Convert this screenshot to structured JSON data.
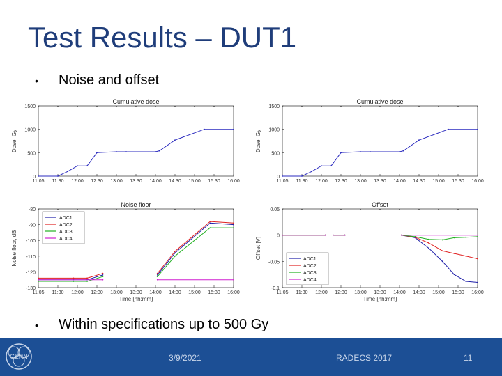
{
  "slide": {
    "title": "Test Results – DUT1",
    "bullets": [
      {
        "text": "Noise and offset"
      },
      {
        "text": "Within specifications up to 500 Gy"
      }
    ]
  },
  "footer": {
    "date": "3/9/2021",
    "conference": "RADECS 2017",
    "page": "11",
    "logo_text": "CERN",
    "bg_color": "#1c4f95"
  },
  "chart_data": [
    {
      "type": "line",
      "title": "Cumulative dose",
      "xlabel": "",
      "ylabel": "Dose, Gy",
      "xticks": [
        "11:05",
        "11:30",
        "12:00",
        "12:30",
        "13:00",
        "13:30",
        "14:00",
        "14:30",
        "15:00",
        "15:30",
        "16:00"
      ],
      "xlim": [
        0,
        10
      ],
      "ylim": [
        0,
        1500
      ],
      "yticks": [
        0,
        500,
        1000,
        1500
      ],
      "yticklabels": [
        "0",
        "500",
        "1000",
        "1500"
      ],
      "series": [
        {
          "name": "",
          "color": "#2b2bbf",
          "x": [
            0,
            1,
            1.5,
            2,
            2.5,
            3,
            4,
            4.5,
            6,
            6.2,
            7,
            8.5,
            10
          ],
          "y": [
            0,
            0,
            100,
            220,
            220,
            500,
            520,
            520,
            520,
            540,
            770,
            1000,
            1000
          ]
        }
      ]
    },
    {
      "type": "line",
      "title": "Cumulative dose",
      "xlabel": "",
      "ylabel": "Dose, Gy",
      "xticks": [
        "11:05",
        "11:30",
        "12:00",
        "12:30",
        "13:00",
        "13:30",
        "14:00",
        "14:30",
        "15:00",
        "15:30",
        "16:00"
      ],
      "xlim": [
        0,
        10
      ],
      "ylim": [
        0,
        1500
      ],
      "yticks": [
        0,
        500,
        1000,
        1500
      ],
      "yticklabels": [
        "0",
        "500",
        "1000",
        "1500"
      ],
      "series": [
        {
          "name": "",
          "color": "#2b2bbf",
          "x": [
            0,
            1,
            1.5,
            2,
            2.5,
            3,
            4,
            4.5,
            6,
            6.2,
            7,
            8.5,
            10
          ],
          "y": [
            0,
            0,
            100,
            220,
            220,
            500,
            520,
            520,
            520,
            540,
            770,
            1000,
            1000
          ]
        }
      ]
    },
    {
      "type": "line",
      "title": "Noise floor",
      "xlabel": "Time [hh:mm]",
      "ylabel": "Noise floor, dB",
      "xticks": [
        "11:05",
        "11:30",
        "12:00",
        "12:30",
        "13:00",
        "13:30",
        "14:00",
        "14:30",
        "15:00",
        "15:30",
        "16:00"
      ],
      "xlim": [
        0,
        10
      ],
      "ylim": [
        -130,
        -80
      ],
      "yticks": [
        -130,
        -120,
        -110,
        -100,
        -90,
        -80
      ],
      "yticklabels": [
        "-130",
        "-120",
        "-110",
        "-100",
        "-90",
        "-80"
      ],
      "legend": "top-left",
      "series": [
        {
          "name": "ADC1",
          "color": "#1f1fa8",
          "segments": [
            {
              "x": [
                0,
                1.8,
                2.5,
                3.3
              ],
              "y": [
                -125,
                -125,
                -125,
                -122
              ]
            },
            {
              "x": [
                6.1,
                7,
                8.8,
                10
              ],
              "y": [
                -122,
                -108,
                -89,
                -90
              ]
            }
          ]
        },
        {
          "name": "ADC2",
          "color": "#e02020",
          "segments": [
            {
              "x": [
                0,
                1.8,
                2.5,
                3.3
              ],
              "y": [
                -124,
                -124,
                -124,
                -121
              ]
            },
            {
              "x": [
                6.1,
                7,
                8.8,
                10
              ],
              "y": [
                -121,
                -107,
                -88,
                -89
              ]
            }
          ]
        },
        {
          "name": "ADC3",
          "color": "#20b020",
          "segments": [
            {
              "x": [
                0,
                1.8,
                2.5,
                3.3
              ],
              "y": [
                -126,
                -126,
                -126,
                -123
              ]
            },
            {
              "x": [
                6.1,
                7,
                8.8,
                10
              ],
              "y": [
                -123,
                -110,
                -92,
                -92
              ]
            }
          ]
        },
        {
          "name": "ADC4",
          "color": "#d020d0",
          "segments": [
            {
              "x": [
                0,
                3.3
              ],
              "y": [
                -125,
                -125
              ]
            },
            {
              "x": [
                6.1,
                10
              ],
              "y": [
                -125,
                -125
              ]
            }
          ]
        }
      ]
    },
    {
      "type": "line",
      "title": "Offset",
      "xlabel": "Time [hh:mm]",
      "ylabel": "Offset [V]",
      "xticks": [
        "11:05",
        "11:30",
        "12:00",
        "12:30",
        "13:00",
        "13:30",
        "14:00",
        "14:30",
        "15:00",
        "15:30",
        "16:00"
      ],
      "xlim": [
        0,
        10
      ],
      "ylim": [
        -0.1,
        0.05
      ],
      "yticks": [
        -0.1,
        -0.05,
        0,
        0.05
      ],
      "yticklabels": [
        "-0.1",
        "-0.05",
        "0",
        "0.05"
      ],
      "legend": "bottom-left",
      "series": [
        {
          "name": "ADC1",
          "color": "#1f1fa8",
          "segments": [
            {
              "x": [
                0,
                2.2
              ],
              "y": [
                0,
                0
              ]
            },
            {
              "x": [
                2.6,
                3.2
              ],
              "y": [
                0,
                0
              ]
            },
            {
              "x": [
                6.1,
                6.8,
                7.5,
                8.2,
                8.8,
                9.4,
                10
              ],
              "y": [
                0,
                -0.005,
                -0.025,
                -0.05,
                -0.075,
                -0.088,
                -0.09
              ]
            }
          ]
        },
        {
          "name": "ADC2",
          "color": "#e02020",
          "segments": [
            {
              "x": [
                0,
                2.2
              ],
              "y": [
                0,
                0
              ]
            },
            {
              "x": [
                2.6,
                3.2
              ],
              "y": [
                0,
                0
              ]
            },
            {
              "x": [
                6.1,
                6.8,
                7.5,
                8.2,
                8.8,
                9.4,
                10
              ],
              "y": [
                0,
                -0.004,
                -0.015,
                -0.03,
                -0.035,
                -0.04,
                -0.045
              ]
            }
          ]
        },
        {
          "name": "ADC3",
          "color": "#20b020",
          "segments": [
            {
              "x": [
                0,
                2.2
              ],
              "y": [
                0,
                0
              ]
            },
            {
              "x": [
                2.6,
                3.2
              ],
              "y": [
                0,
                0
              ]
            },
            {
              "x": [
                6.1,
                6.8,
                7.5,
                8.2,
                8.8,
                9.4,
                10
              ],
              "y": [
                0,
                -0.003,
                -0.008,
                -0.009,
                -0.005,
                -0.004,
                -0.003
              ]
            }
          ]
        },
        {
          "name": "ADC4",
          "color": "#d020d0",
          "segments": [
            {
              "x": [
                0,
                2.2
              ],
              "y": [
                0,
                0
              ]
            },
            {
              "x": [
                2.6,
                3.2
              ],
              "y": [
                0,
                0
              ]
            },
            {
              "x": [
                6.1,
                10
              ],
              "y": [
                0,
                0
              ]
            }
          ]
        }
      ]
    }
  ]
}
